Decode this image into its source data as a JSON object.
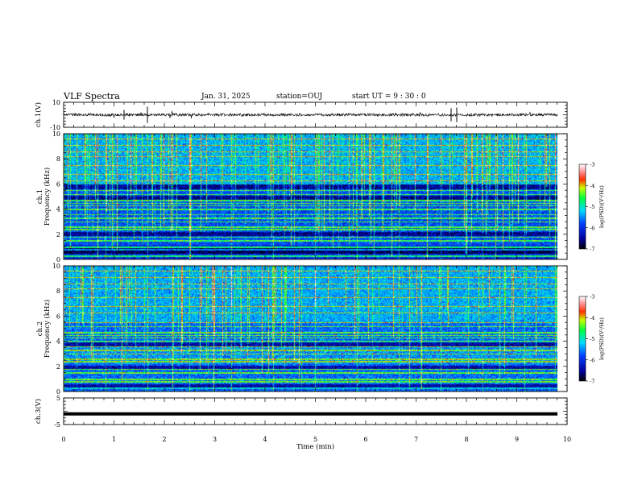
{
  "header": {
    "title": "VLF Spectra",
    "date": "Jan. 31, 2025",
    "station": "station=OUJ",
    "start": "start UT =  9 : 30 : 0"
  },
  "chart_data": [
    {
      "type": "line",
      "panel": "ch1-waveform",
      "ylabel": "ch.1(V)",
      "ylim": [
        -10,
        10
      ],
      "y_ticklabels": [
        "10",
        "-10"
      ],
      "baseline": 0,
      "color": "#000000"
    },
    {
      "type": "heatmap",
      "panel": "ch1-spectrogram",
      "ylabel": "ch.1\nFrequency (kHz)",
      "ylim": [
        0,
        10
      ],
      "y_ticklabels": [
        "0",
        "2",
        "4",
        "6",
        "8",
        "10"
      ],
      "colorbar": {
        "label": "log(PSD)(V²/Hz)",
        "range": [
          -7,
          -3
        ],
        "ticklabels": [
          "-3",
          "-4",
          "-5",
          "-6",
          "-7"
        ]
      }
    },
    {
      "type": "heatmap",
      "panel": "ch2-spectrogram",
      "ylabel": "ch.2\nFrequency (kHz)",
      "ylim": [
        0,
        10
      ],
      "y_ticklabels": [
        "0",
        "2",
        "4",
        "6",
        "8",
        "10"
      ],
      "colorbar": {
        "label": "log(PSD)(V²/Hz)",
        "range": [
          -7,
          -3
        ],
        "ticklabels": [
          "-3",
          "-4",
          "-5",
          "-6",
          "-7"
        ]
      }
    },
    {
      "type": "line",
      "panel": "ch3-waveform",
      "ylabel": "ch.3(V)",
      "ylim": [
        -5,
        5
      ],
      "y_ticklabels": [
        "5",
        "-5"
      ],
      "baseline": -1,
      "color": "#000000"
    }
  ],
  "xaxis": {
    "label": "Time (min)",
    "range": [
      0,
      10
    ],
    "ticklabels": [
      "0",
      "1",
      "2",
      "3",
      "4",
      "5",
      "6",
      "7",
      "8",
      "9",
      "10"
    ]
  }
}
